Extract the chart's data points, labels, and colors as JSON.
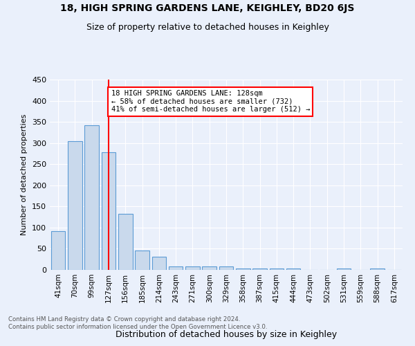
{
  "title1": "18, HIGH SPRING GARDENS LANE, KEIGHLEY, BD20 6JS",
  "title2": "Size of property relative to detached houses in Keighley",
  "xlabel": "Distribution of detached houses by size in Keighley",
  "ylabel": "Number of detached properties",
  "footnote": "Contains HM Land Registry data © Crown copyright and database right 2024.\nContains public sector information licensed under the Open Government Licence v3.0.",
  "categories": [
    "41sqm",
    "70sqm",
    "99sqm",
    "127sqm",
    "156sqm",
    "185sqm",
    "214sqm",
    "243sqm",
    "271sqm",
    "300sqm",
    "329sqm",
    "358sqm",
    "387sqm",
    "415sqm",
    "444sqm",
    "473sqm",
    "502sqm",
    "531sqm",
    "559sqm",
    "588sqm",
    "617sqm"
  ],
  "values": [
    92,
    304,
    342,
    279,
    133,
    46,
    31,
    9,
    9,
    8,
    9,
    4,
    4,
    4,
    3,
    0,
    0,
    4,
    0,
    4,
    0
  ],
  "bar_color": "#c9d9ec",
  "bar_edge_color": "#5b9bd5",
  "annotation_text": "18 HIGH SPRING GARDENS LANE: 128sqm\n← 58% of detached houses are smaller (732)\n41% of semi-detached houses are larger (512) →",
  "annotation_box_color": "white",
  "annotation_box_edge": "red",
  "vline_color": "red",
  "ylim": [
    0,
    450
  ],
  "yticks": [
    0,
    50,
    100,
    150,
    200,
    250,
    300,
    350,
    400,
    450
  ],
  "bg_color": "#eaf0fb",
  "plot_bg_color": "#eaf0fb",
  "grid_color": "white"
}
